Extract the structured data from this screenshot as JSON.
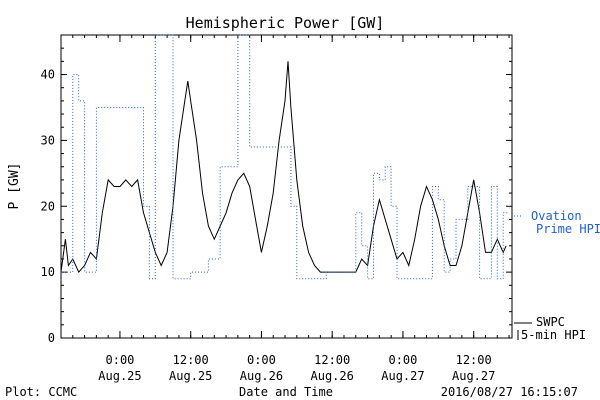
{
  "chart_data": {
    "type": "line",
    "title": "Hemispheric Power [GW]",
    "ylabel": "P [GW]",
    "xlabel": "Date and Time",
    "ylim": [
      0,
      46
    ],
    "yticks": [
      0,
      10,
      20,
      30,
      40
    ],
    "xlim": [
      "2016-08-24 14:00",
      "2016-08-27 18:30"
    ],
    "xtick_labels": [
      {
        "time": "0:00",
        "date": "Aug.25",
        "at": "2016-08-25 00:00"
      },
      {
        "time": "12:00",
        "date": "Aug.25",
        "at": "2016-08-25 12:00"
      },
      {
        "time": "0:00",
        "date": "Aug.26",
        "at": "2016-08-26 00:00"
      },
      {
        "time": "12:00",
        "date": "Aug.26",
        "at": "2016-08-26 12:00"
      },
      {
        "time": "0:00",
        "date": "Aug.27",
        "at": "2016-08-27 00:00"
      },
      {
        "time": "12:00",
        "date": "Aug.27",
        "at": "2016-08-27 12:00"
      }
    ],
    "series": [
      {
        "name": "SWPC 5-min HPI",
        "legend_lines": [
          "SWPC",
          "5-min HPI"
        ],
        "color": "#000000",
        "style": "solid",
        "points": [
          [
            "2016-08-24 14:00",
            10
          ],
          [
            "2016-08-24 14:45",
            15
          ],
          [
            "2016-08-24 15:15",
            11
          ],
          [
            "2016-08-24 16:00",
            12
          ],
          [
            "2016-08-24 17:00",
            10
          ],
          [
            "2016-08-24 18:00",
            11
          ],
          [
            "2016-08-24 19:00",
            13
          ],
          [
            "2016-08-24 20:00",
            12
          ],
          [
            "2016-08-24 21:00",
            19
          ],
          [
            "2016-08-24 22:00",
            24
          ],
          [
            "2016-08-24 23:00",
            23
          ],
          [
            "2016-08-25 00:00",
            23
          ],
          [
            "2016-08-25 01:00",
            24
          ],
          [
            "2016-08-25 02:00",
            23
          ],
          [
            "2016-08-25 03:00",
            24
          ],
          [
            "2016-08-25 04:00",
            19
          ],
          [
            "2016-08-25 05:00",
            16
          ],
          [
            "2016-08-25 06:00",
            13
          ],
          [
            "2016-08-25 07:00",
            11
          ],
          [
            "2016-08-25 08:00",
            13
          ],
          [
            "2016-08-25 09:00",
            20
          ],
          [
            "2016-08-25 10:00",
            30
          ],
          [
            "2016-08-25 11:00",
            36
          ],
          [
            "2016-08-25 11:30",
            39
          ],
          [
            "2016-08-25 12:00",
            36
          ],
          [
            "2016-08-25 13:00",
            30
          ],
          [
            "2016-08-25 14:00",
            22
          ],
          [
            "2016-08-25 15:00",
            17
          ],
          [
            "2016-08-25 16:00",
            15
          ],
          [
            "2016-08-25 17:00",
            17
          ],
          [
            "2016-08-25 18:00",
            19
          ],
          [
            "2016-08-25 19:00",
            22
          ],
          [
            "2016-08-25 20:00",
            24
          ],
          [
            "2016-08-25 21:00",
            25
          ],
          [
            "2016-08-25 22:00",
            23
          ],
          [
            "2016-08-25 23:00",
            18
          ],
          [
            "2016-08-26 00:00",
            13
          ],
          [
            "2016-08-26 01:00",
            17
          ],
          [
            "2016-08-26 02:00",
            22
          ],
          [
            "2016-08-26 03:00",
            30
          ],
          [
            "2016-08-26 04:00",
            36
          ],
          [
            "2016-08-26 04:30",
            42
          ],
          [
            "2016-08-26 05:00",
            35
          ],
          [
            "2016-08-26 06:00",
            24
          ],
          [
            "2016-08-26 07:00",
            17
          ],
          [
            "2016-08-26 08:00",
            13
          ],
          [
            "2016-08-26 09:00",
            11
          ],
          [
            "2016-08-26 10:00",
            10
          ],
          [
            "2016-08-26 12:00",
            10
          ],
          [
            "2016-08-26 14:00",
            10
          ],
          [
            "2016-08-26 16:00",
            10
          ],
          [
            "2016-08-26 17:00",
            12
          ],
          [
            "2016-08-26 18:00",
            11
          ],
          [
            "2016-08-26 19:00",
            17
          ],
          [
            "2016-08-26 20:00",
            21
          ],
          [
            "2016-08-26 21:00",
            18
          ],
          [
            "2016-08-26 22:00",
            15
          ],
          [
            "2016-08-26 23:00",
            12
          ],
          [
            "2016-08-27 00:00",
            13
          ],
          [
            "2016-08-27 01:00",
            11
          ],
          [
            "2016-08-27 02:00",
            15
          ],
          [
            "2016-08-27 03:00",
            20
          ],
          [
            "2016-08-27 04:00",
            23
          ],
          [
            "2016-08-27 05:00",
            21
          ],
          [
            "2016-08-27 06:00",
            18
          ],
          [
            "2016-08-27 07:00",
            14
          ],
          [
            "2016-08-27 08:00",
            11
          ],
          [
            "2016-08-27 09:00",
            11
          ],
          [
            "2016-08-27 10:00",
            14
          ],
          [
            "2016-08-27 11:00",
            19
          ],
          [
            "2016-08-27 12:00",
            24
          ],
          [
            "2016-08-27 13:00",
            19
          ],
          [
            "2016-08-27 14:00",
            13
          ],
          [
            "2016-08-27 15:00",
            13
          ],
          [
            "2016-08-27 16:00",
            15
          ],
          [
            "2016-08-27 17:00",
            13
          ],
          [
            "2016-08-27 17:30",
            14
          ]
        ]
      },
      {
        "name": "Ovation Prime HPI",
        "legend_lines": [
          "Ovation",
          "Prime HPI"
        ],
        "color": "#1f5fd0",
        "style": "dotted",
        "points": [
          [
            "2016-08-24 14:00",
            10
          ],
          [
            "2016-08-24 16:00",
            10
          ],
          [
            "2016-08-24 16:00",
            40
          ],
          [
            "2016-08-24 17:00",
            40
          ],
          [
            "2016-08-24 17:00",
            36
          ],
          [
            "2016-08-24 18:00",
            36
          ],
          [
            "2016-08-24 18:00",
            10
          ],
          [
            "2016-08-24 20:00",
            10
          ],
          [
            "2016-08-24 20:00",
            35
          ],
          [
            "2016-08-25 04:00",
            35
          ],
          [
            "2016-08-25 04:00",
            20
          ],
          [
            "2016-08-25 05:00",
            20
          ],
          [
            "2016-08-25 05:00",
            9
          ],
          [
            "2016-08-25 06:00",
            9
          ],
          [
            "2016-08-25 06:00",
            46
          ],
          [
            "2016-08-25 09:00",
            46
          ],
          [
            "2016-08-25 09:00",
            9
          ],
          [
            "2016-08-25 12:00",
            9
          ],
          [
            "2016-08-25 12:00",
            10
          ],
          [
            "2016-08-25 15:00",
            10
          ],
          [
            "2016-08-25 15:00",
            12
          ],
          [
            "2016-08-25 17:00",
            12
          ],
          [
            "2016-08-25 17:00",
            26
          ],
          [
            "2016-08-25 20:00",
            26
          ],
          [
            "2016-08-25 20:00",
            46
          ],
          [
            "2016-08-25 22:00",
            46
          ],
          [
            "2016-08-25 22:00",
            29
          ],
          [
            "2016-08-26 05:00",
            29
          ],
          [
            "2016-08-26 05:00",
            20
          ],
          [
            "2016-08-26 06:00",
            20
          ],
          [
            "2016-08-26 06:00",
            9
          ],
          [
            "2016-08-26 11:00",
            9
          ],
          [
            "2016-08-26 11:00",
            10
          ],
          [
            "2016-08-26 16:00",
            10
          ],
          [
            "2016-08-26 16:00",
            19
          ],
          [
            "2016-08-26 17:00",
            19
          ],
          [
            "2016-08-26 17:00",
            14
          ],
          [
            "2016-08-26 18:00",
            14
          ],
          [
            "2016-08-26 18:00",
            9
          ],
          [
            "2016-08-26 19:00",
            9
          ],
          [
            "2016-08-26 19:00",
            25
          ],
          [
            "2016-08-26 20:00",
            25
          ],
          [
            "2016-08-26 20:00",
            24
          ],
          [
            "2016-08-26 21:00",
            24
          ],
          [
            "2016-08-26 21:00",
            26
          ],
          [
            "2016-08-26 22:00",
            26
          ],
          [
            "2016-08-26 22:00",
            20
          ],
          [
            "2016-08-26 23:00",
            20
          ],
          [
            "2016-08-26 23:00",
            9
          ],
          [
            "2016-08-27 05:00",
            9
          ],
          [
            "2016-08-27 05:00",
            23
          ],
          [
            "2016-08-27 06:00",
            23
          ],
          [
            "2016-08-27 06:00",
            21
          ],
          [
            "2016-08-27 07:00",
            21
          ],
          [
            "2016-08-27 07:00",
            10
          ],
          [
            "2016-08-27 08:00",
            10
          ],
          [
            "2016-08-27 08:00",
            12
          ],
          [
            "2016-08-27 09:00",
            12
          ],
          [
            "2016-08-27 09:00",
            18
          ],
          [
            "2016-08-27 11:00",
            18
          ],
          [
            "2016-08-27 11:00",
            23
          ],
          [
            "2016-08-27 13:00",
            23
          ],
          [
            "2016-08-27 13:00",
            9
          ],
          [
            "2016-08-27 15:00",
            9
          ],
          [
            "2016-08-27 15:00",
            23
          ],
          [
            "2016-08-27 16:00",
            23
          ],
          [
            "2016-08-27 16:00",
            9
          ],
          [
            "2016-08-27 17:00",
            9
          ],
          [
            "2016-08-27 17:00",
            19
          ],
          [
            "2016-08-27 18:00",
            19
          ]
        ]
      }
    ],
    "grid": false,
    "legend_position": "right"
  },
  "footer": {
    "left": "Plot: CCMC",
    "right": "2016/08/27 16:15:07"
  },
  "colors": {
    "axis": "#000000",
    "hpi_line": "#000000",
    "ovation_line": "#1f5fd0"
  }
}
